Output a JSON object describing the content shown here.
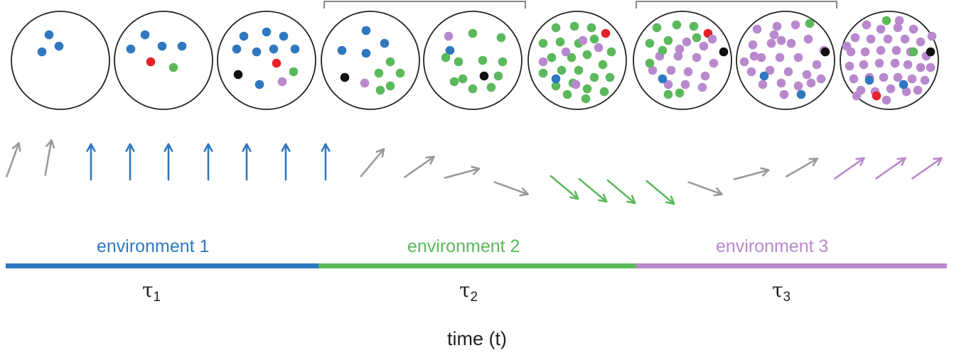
{
  "colors": {
    "blue": "#2f78c0",
    "green": "#5cb85c",
    "purple": "#b889cc",
    "red": "#e8202a",
    "black": "#111111",
    "gray": "#9a9a9a",
    "outline": "#222222",
    "bracket": "#888888"
  },
  "environments": [
    {
      "label": "environment 1",
      "color": "#2f78c0",
      "tau_symbol": "τ",
      "tau_index": "1"
    },
    {
      "label": "environment 2",
      "color": "#5cb85c",
      "tau_symbol": "τ",
      "tau_index": "2"
    },
    {
      "label": "environment 3",
      "color": "#b889cc",
      "tau_symbol": "τ",
      "tau_index": "3"
    }
  ],
  "time_axis_label": "time (t)",
  "populations": [
    {
      "dots": [
        "blue",
        "blue",
        "blue"
      ]
    },
    {
      "dots": [
        "blue",
        "blue",
        "blue",
        "blue",
        "red",
        "green"
      ]
    },
    {
      "dots": [
        "blue",
        "blue",
        "blue",
        "blue",
        "blue",
        "blue",
        "blue",
        "black",
        "red",
        "green",
        "blue",
        "purple"
      ]
    },
    {
      "dots": [
        "blue",
        "blue",
        "blue",
        "blue",
        "green",
        "green",
        "green",
        "green",
        "black",
        "purple",
        "green"
      ]
    },
    {
      "dots": [
        "purple",
        "blue",
        "green",
        "green",
        "green",
        "green",
        "green",
        "green",
        "green",
        "black",
        "green",
        "green",
        "green",
        "green"
      ]
    },
    {
      "dots": [
        "green",
        "green",
        "green",
        "green",
        "green",
        "green",
        "green",
        "green",
        "green",
        "green",
        "green",
        "green",
        "green",
        "green",
        "green",
        "green",
        "green",
        "green",
        "green",
        "green",
        "green",
        "green",
        "green",
        "red",
        "purple",
        "purple",
        "purple",
        "purple",
        "purple",
        "blue"
      ]
    },
    {
      "dots": [
        "green",
        "green",
        "green",
        "red",
        "black",
        "green",
        "green",
        "purple",
        "purple",
        "purple",
        "purple",
        "purple",
        "purple",
        "purple",
        "purple",
        "purple",
        "purple",
        "purple",
        "purple",
        "purple",
        "green",
        "green",
        "green",
        "blue",
        "green",
        "green",
        "purple",
        "purple"
      ]
    },
    {
      "dots": [
        "purple",
        "purple",
        "purple",
        "green",
        "purple",
        "purple",
        "purple",
        "purple",
        "purple",
        "purple",
        "purple",
        "purple",
        "purple",
        "purple",
        "purple",
        "purple",
        "purple",
        "purple",
        "purple",
        "purple",
        "black",
        "purple",
        "purple",
        "purple",
        "blue",
        "purple",
        "purple",
        "blue",
        "purple",
        "purple"
      ]
    },
    {
      "dots": [
        "green",
        "purple",
        "purple",
        "purple",
        "purple",
        "purple",
        "purple",
        "purple",
        "purple",
        "purple",
        "purple",
        "purple",
        "purple",
        "purple",
        "purple",
        "purple",
        "purple",
        "purple",
        "purple",
        "purple",
        "purple",
        "purple",
        "purple",
        "green",
        "black",
        "purple",
        "purple",
        "purple",
        "purple",
        "purple",
        "purple",
        "purple",
        "purple",
        "purple",
        "blue",
        "blue",
        "purple",
        "purple",
        "red",
        "purple",
        "purple",
        "purple",
        "purple",
        "purple"
      ]
    }
  ],
  "arrows": [
    {
      "color": "gray",
      "angle_deg": 20
    },
    {
      "color": "gray",
      "angle_deg": 10
    },
    {
      "color": "blue",
      "angle_deg": 0
    },
    {
      "color": "blue",
      "angle_deg": 0
    },
    {
      "color": "blue",
      "angle_deg": 0
    },
    {
      "color": "blue",
      "angle_deg": 0
    },
    {
      "color": "blue",
      "angle_deg": 0
    },
    {
      "color": "blue",
      "angle_deg": 0
    },
    {
      "color": "blue",
      "angle_deg": 0
    },
    {
      "color": "gray",
      "angle_deg": 40
    },
    {
      "color": "gray",
      "angle_deg": 55
    },
    {
      "color": "gray",
      "angle_deg": 75
    },
    {
      "color": "gray",
      "angle_deg": 110
    },
    {
      "color": "green",
      "angle_deg": 130
    },
    {
      "color": "green",
      "angle_deg": 130
    },
    {
      "color": "green",
      "angle_deg": 130
    },
    {
      "color": "green",
      "angle_deg": 130
    },
    {
      "color": "gray",
      "angle_deg": 110
    },
    {
      "color": "gray",
      "angle_deg": 75
    },
    {
      "color": "gray",
      "angle_deg": 60
    },
    {
      "color": "purple",
      "angle_deg": 55
    },
    {
      "color": "purple",
      "angle_deg": 55
    },
    {
      "color": "purple",
      "angle_deg": 55
    }
  ]
}
